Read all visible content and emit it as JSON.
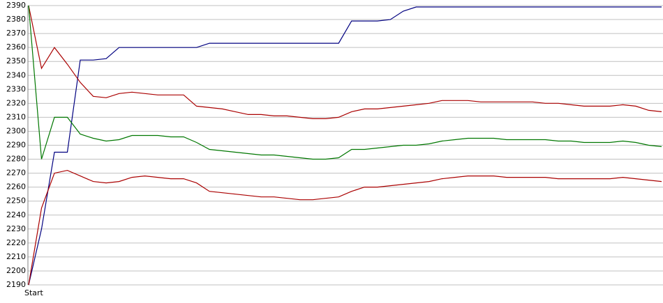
{
  "chart_data": {
    "type": "line",
    "categories": [
      "Start",
      null,
      null,
      null,
      null,
      null,
      null,
      null,
      null,
      null,
      null,
      null,
      null,
      null,
      null,
      null,
      null,
      null,
      null,
      null,
      null,
      null,
      null,
      null,
      null,
      null,
      null,
      null,
      null,
      null,
      null,
      null,
      null,
      null,
      null,
      null,
      null,
      null,
      null,
      null,
      null,
      null,
      null,
      null,
      null,
      null,
      null,
      null,
      null,
      null
    ],
    "series": [
      {
        "color": "#000080",
        "values": [
          2190,
          2230,
          2285,
          2285,
          2351,
          2351,
          2352,
          2360,
          2360,
          2360,
          2360,
          2360,
          2360,
          2360,
          2363,
          2363,
          2363,
          2363,
          2363,
          2363,
          2363,
          2363,
          2363,
          2363,
          2363,
          2379,
          2379,
          2379,
          2380,
          2386,
          2389,
          2389,
          2389,
          2389,
          2389,
          2389,
          2389,
          2389,
          2389,
          2389,
          2389,
          2389,
          2389,
          2389,
          2389,
          2389,
          2389,
          2389,
          2389,
          2389
        ]
      },
      {
        "color": "#aa0000",
        "values": [
          2390,
          2345,
          2360,
          2348,
          2335,
          2325,
          2324,
          2327,
          2328,
          2327,
          2326,
          2326,
          2326,
          2318,
          2317,
          2316,
          2314,
          2312,
          2312,
          2311,
          2311,
          2310,
          2309,
          2309,
          2310,
          2314,
          2316,
          2316,
          2317,
          2318,
          2319,
          2320,
          2322,
          2322,
          2322,
          2321,
          2321,
          2321,
          2321,
          2321,
          2320,
          2320,
          2319,
          2318,
          2318,
          2318,
          2319,
          2318,
          2315,
          2314
        ]
      },
      {
        "color": "#007700",
        "values": [
          2390,
          2280,
          2310,
          2310,
          2298,
          2295,
          2293,
          2294,
          2297,
          2297,
          2297,
          2296,
          2296,
          2292,
          2287,
          2286,
          2285,
          2284,
          2283,
          2283,
          2282,
          2281,
          2280,
          2280,
          2281,
          2287,
          2287,
          2288,
          2289,
          2290,
          2290,
          2291,
          2293,
          2294,
          2295,
          2295,
          2295,
          2294,
          2294,
          2294,
          2294,
          2293,
          2293,
          2292,
          2292,
          2292,
          2293,
          2292,
          2290,
          2289
        ]
      },
      {
        "color": "#aa0000",
        "values": [
          2190,
          2245,
          2270,
          2272,
          2268,
          2264,
          2263,
          2264,
          2267,
          2268,
          2267,
          2266,
          2266,
          2263,
          2257,
          2256,
          2255,
          2254,
          2253,
          2253,
          2252,
          2251,
          2251,
          2252,
          2253,
          2257,
          2260,
          2260,
          2261,
          2262,
          2263,
          2264,
          2266,
          2267,
          2268,
          2268,
          2268,
          2267,
          2267,
          2267,
          2267,
          2266,
          2266,
          2266,
          2266,
          2266,
          2267,
          2266,
          2265,
          2264
        ]
      }
    ],
    "ylim": [
      2190,
      2390
    ],
    "yticks": [
      2190,
      2200,
      2210,
      2220,
      2230,
      2240,
      2250,
      2260,
      2270,
      2280,
      2290,
      2300,
      2310,
      2320,
      2330,
      2340,
      2350,
      2360,
      2370,
      2380,
      2390
    ],
    "grid": true
  }
}
